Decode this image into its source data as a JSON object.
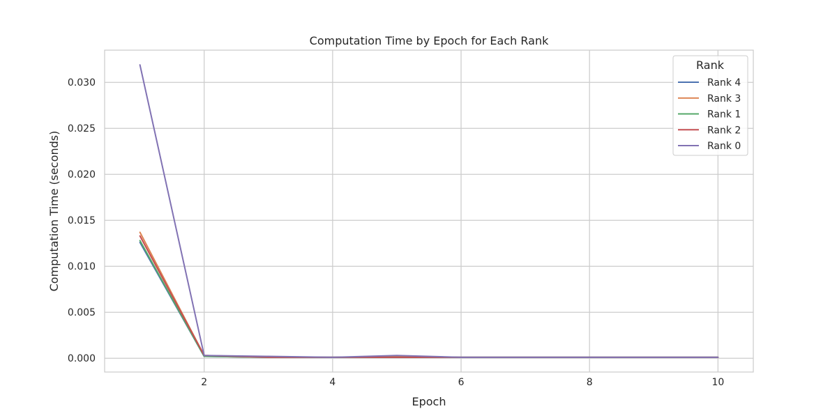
{
  "chart_data": {
    "type": "line",
    "title": "Computation Time by Epoch for Each Rank",
    "xlabel": "Epoch",
    "ylabel": "Computation Time (seconds)",
    "xlim": [
      0.45,
      10.55
    ],
    "ylim": [
      -0.0015,
      0.0335
    ],
    "x_ticks": [
      2,
      4,
      6,
      8,
      10
    ],
    "x_tick_labels": [
      "2",
      "4",
      "6",
      "8",
      "10"
    ],
    "y_ticks": [
      0.0,
      0.005,
      0.01,
      0.015,
      0.02,
      0.025,
      0.03
    ],
    "y_tick_labels": [
      "0.000",
      "0.005",
      "0.010",
      "0.015",
      "0.020",
      "0.025",
      "0.030"
    ],
    "grid": true,
    "legend_title": "Rank",
    "legend_position": "top-right",
    "x": [
      1,
      2,
      3,
      4,
      5,
      6,
      7,
      8,
      9,
      10
    ],
    "series": [
      {
        "name": "Rank 4",
        "color": "#4c72b0",
        "values": [
          0.0126,
          0.0002,
          0.0001,
          0.0001,
          0.0001,
          0.0001,
          0.0001,
          0.0001,
          0.0001,
          0.0001
        ]
      },
      {
        "name": "Rank 3",
        "color": "#dd8452",
        "values": [
          0.0137,
          0.0003,
          0.0001,
          0.0001,
          0.0002,
          0.0001,
          0.0001,
          0.0001,
          0.0001,
          0.0001
        ]
      },
      {
        "name": "Rank 1",
        "color": "#55a868",
        "values": [
          0.0128,
          0.0002,
          0.0001,
          0.0001,
          0.0001,
          0.0001,
          0.0001,
          0.0001,
          0.0001,
          0.0001
        ]
      },
      {
        "name": "Rank 2",
        "color": "#c44e52",
        "values": [
          0.0133,
          0.0003,
          0.0001,
          0.0001,
          0.0001,
          0.0001,
          0.0001,
          0.0001,
          0.0001,
          0.0001
        ]
      },
      {
        "name": "Rank 0",
        "color": "#8172b3",
        "values": [
          0.0319,
          0.0003,
          0.0002,
          0.0001,
          0.0003,
          0.0001,
          0.0001,
          0.0001,
          0.0001,
          0.0001
        ]
      }
    ]
  }
}
